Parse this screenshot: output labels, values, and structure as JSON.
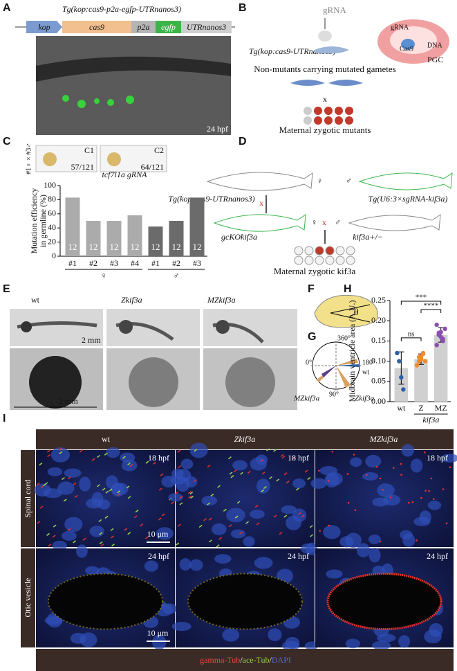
{
  "panels": {
    "A": {
      "label": "A",
      "construct": "Tg(kop:cas9-p2a-egfp-UTRnanos3)",
      "elements": [
        "kop",
        "cas9",
        "p2a",
        "egfp",
        "UTRnanos3"
      ],
      "stage": "24 hpf"
    },
    "B": {
      "label": "B",
      "grna": "gRNA",
      "transgene": "Tg(kop:cas9-UTRnanos3)",
      "cell_labels": [
        "gRNA",
        "Cas9",
        "DNA",
        "PGC"
      ],
      "step": "Non-mutants carrying mutated gametes",
      "cross": "x",
      "result": "Maternal zygotic mutants"
    },
    "C": {
      "label": "C",
      "cross": "#1♀ × #3♂",
      "images": [
        {
          "name": "C1",
          "ratio": "57/121"
        },
        {
          "name": "C2",
          "ratio": "64/121"
        }
      ]
    },
    "D": {
      "label": "D",
      "female": "♀",
      "male": "♂",
      "cross": "x",
      "transgene_female": "Tg(kop:cas9-UTRnanos3)",
      "transgene_male": "Tg(U6:3×sgRNA-kif3a)",
      "offspring_female": "gcKOkif3a",
      "offspring_male": "kif3a+/−",
      "result": "Maternal zygotic kif3a"
    },
    "E": {
      "label": "E",
      "columns": [
        "wt",
        "Zkif3a",
        "MZkif3a"
      ],
      "scale": "2 mm"
    },
    "F": {
      "label": "F",
      "angle": "θ"
    },
    "G": {
      "label": "G",
      "angles": [
        "360°",
        "180°",
        "0°",
        "90°"
      ],
      "groups": [
        "wt",
        "MZkif3a",
        "Zkif3a"
      ]
    },
    "H": {
      "label": "H"
    },
    "I": {
      "label": "I",
      "columns": [
        "wt",
        "Zkif3a",
        "MZkif3a"
      ],
      "rows": [
        "Spinal cord",
        "Otic vesicle"
      ],
      "stages": [
        "18 hpf",
        "24 hpf"
      ],
      "scale": "10 μm",
      "legend": [
        "gamma-Tub",
        "ace-Tub",
        "DAPI"
      ],
      "separator": "/"
    }
  },
  "chart_data": [
    {
      "type": "bar",
      "title": "tcf7l1a gRNA",
      "y_label": [
        "Mutation efficiency",
        "in germline (%)"
      ],
      "categories": [
        "#1",
        "#2",
        "#3",
        "#4",
        "#1",
        "#2",
        "#3"
      ],
      "series": [
        {
          "name": "♀",
          "color": "#ababab",
          "values": [
            83,
            50,
            50,
            58,
            null,
            null,
            null
          ],
          "counts": [
            12,
            12,
            12,
            12,
            null,
            null,
            null
          ]
        },
        {
          "name": "♂",
          "color": "#6b6b6b",
          "values": [
            null,
            null,
            null,
            null,
            42,
            50,
            83
          ],
          "counts": [
            null,
            null,
            null,
            null,
            12,
            12,
            12
          ]
        }
      ],
      "ylim": [
        0,
        100
      ],
      "yticks": [
        0,
        20,
        40,
        60,
        80,
        100
      ]
    },
    {
      "type": "bar",
      "y_label": "Midbrain ventricle area (A.U.)",
      "categories": [
        "wt",
        "Z",
        "MZ"
      ],
      "group_label": "kif3a",
      "values": [
        0.083,
        0.105,
        0.165
      ],
      "errors": [
        0.04,
        0.013,
        0.018
      ],
      "colors": [
        "#2b5fa8",
        "#f28a2e",
        "#8a4fb0"
      ],
      "points": [
        [
          0.12,
          0.1,
          0.06,
          0.03
        ],
        [
          0.09,
          0.1,
          0.11,
          0.12,
          0.1,
          0.09,
          0.11,
          0.105,
          0.118
        ],
        [
          0.19,
          0.17,
          0.16,
          0.15,
          0.18,
          0.14,
          0.165,
          0.172,
          0.155
        ]
      ],
      "ylim": [
        0,
        0.25
      ],
      "yticks": [
        {
          "value": 0,
          "label": "0.00"
        },
        {
          "value": 0.05,
          "label": "0.05"
        },
        {
          "value": 0.1,
          "label": "0.10"
        },
        {
          "value": 0.15,
          "label": "0.15"
        },
        {
          "value": 0.2,
          "label": "0.20"
        },
        {
          "value": 0.25,
          "label": "0.25"
        }
      ],
      "significance": [
        {
          "from": 0,
          "to": 2,
          "label": "***"
        },
        {
          "from": 1,
          "to": 2,
          "label": "****"
        },
        {
          "from": 0,
          "to": 1,
          "label": "ns"
        }
      ]
    }
  ]
}
